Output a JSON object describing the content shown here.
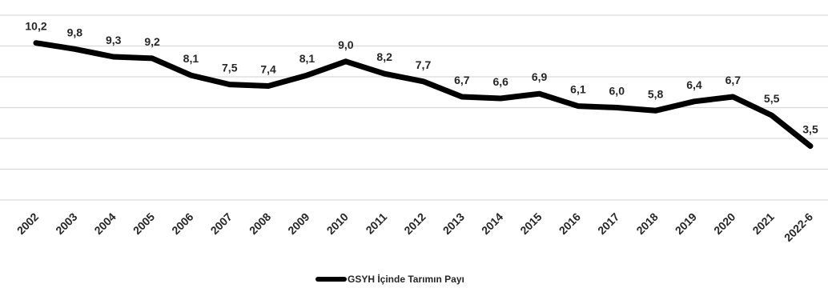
{
  "chart_data": {
    "type": "line",
    "title": "",
    "xlabel": "",
    "ylabel": "",
    "categories": [
      "2002",
      "2003",
      "2004",
      "2005",
      "2006",
      "2007",
      "2008",
      "2009",
      "2010",
      "2011",
      "2012",
      "2013",
      "2014",
      "2015",
      "2016",
      "2017",
      "2018",
      "2019",
      "2020",
      "2021",
      "2022-6"
    ],
    "series": [
      {
        "name": "GSYH İçinde Tarımın Payı",
        "values": [
          10.2,
          9.8,
          9.3,
          9.2,
          8.1,
          7.5,
          7.4,
          8.1,
          9.0,
          8.2,
          7.7,
          6.7,
          6.6,
          6.9,
          6.1,
          6.0,
          5.8,
          6.4,
          6.7,
          5.5,
          3.5
        ],
        "data_labels": [
          "10,2",
          "9,8",
          "9,3",
          "9,2",
          "8,1",
          "7,5",
          "7,4",
          "8,1",
          "9,0",
          "8,2",
          "7,7",
          "6,7",
          "6,6",
          "6,9",
          "6,1",
          "6,0",
          "5,8",
          "6,4",
          "6,7",
          "5,5",
          "3,5"
        ]
      }
    ],
    "ylim": [
      0,
      12
    ],
    "grid": true,
    "legend": "bottom-center",
    "colors": {
      "series": "#000000",
      "grid": "#d9d9d9",
      "text": "#262626"
    }
  }
}
